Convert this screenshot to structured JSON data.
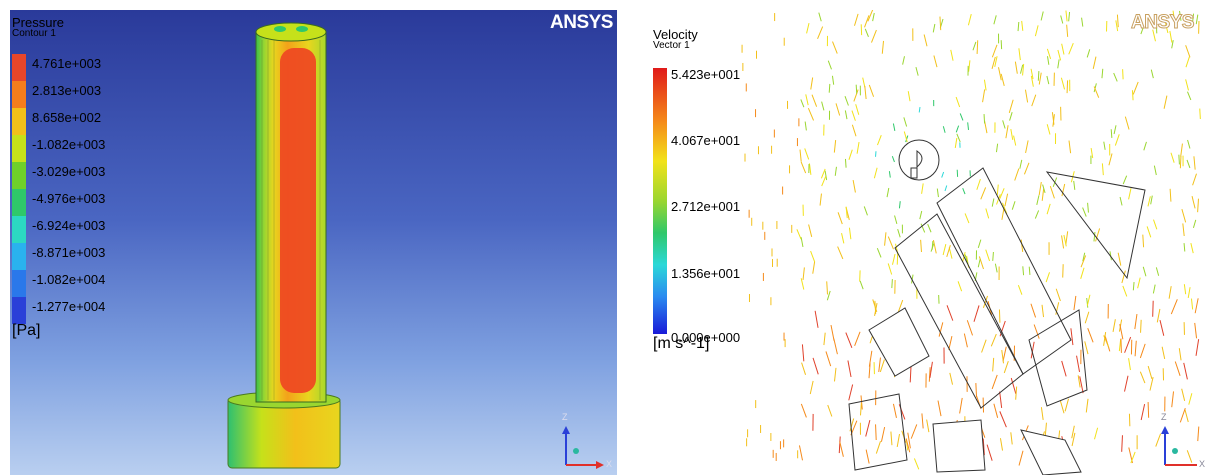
{
  "left": {
    "brand": "ANSYS",
    "legend": {
      "title": "Pressure",
      "subtitle": "Contour 1",
      "unit": "[Pa]",
      "levels": [
        "4.761e+003",
        "2.813e+003",
        "8.658e+002",
        "-1.082e+003",
        "-3.029e+003",
        "-4.976e+003",
        "-6.924e+003",
        "-8.871e+003",
        "-1.082e+004",
        "-1.277e+004"
      ],
      "colors": [
        "#e8462a",
        "#f57d1c",
        "#f2c01a",
        "#c6e11a",
        "#6fd02a",
        "#2fc86a",
        "#2cd8c2",
        "#2ab2ee",
        "#2a78ea",
        "#2a40d8"
      ]
    },
    "axes": {
      "z": "Z",
      "x": "X"
    }
  },
  "right": {
    "brand": "ANSYS",
    "legend": {
      "title": "Velocity",
      "subtitle": "Vector 1",
      "unit": "[m s^-1]",
      "ticks": [
        "5.423e+001",
        "4.067e+001",
        "2.712e+001",
        "1.356e+001",
        "0.000e+000"
      ]
    },
    "axes": {
      "z": "Z",
      "x": "X"
    }
  }
}
